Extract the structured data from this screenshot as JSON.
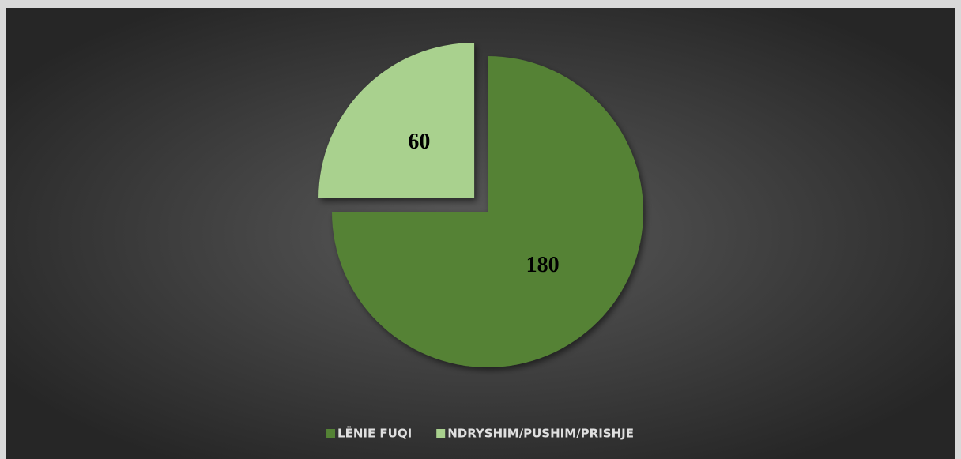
{
  "chart_data": {
    "type": "pie",
    "categories": [
      "LËNIE FUQI",
      "NDRYSHIM/PUSHIM/PRISHJE"
    ],
    "values": [
      180,
      60
    ],
    "colors": [
      "#548235",
      "#a9d18e"
    ],
    "explode": [
      false,
      true
    ],
    "legend": "bottom"
  }
}
